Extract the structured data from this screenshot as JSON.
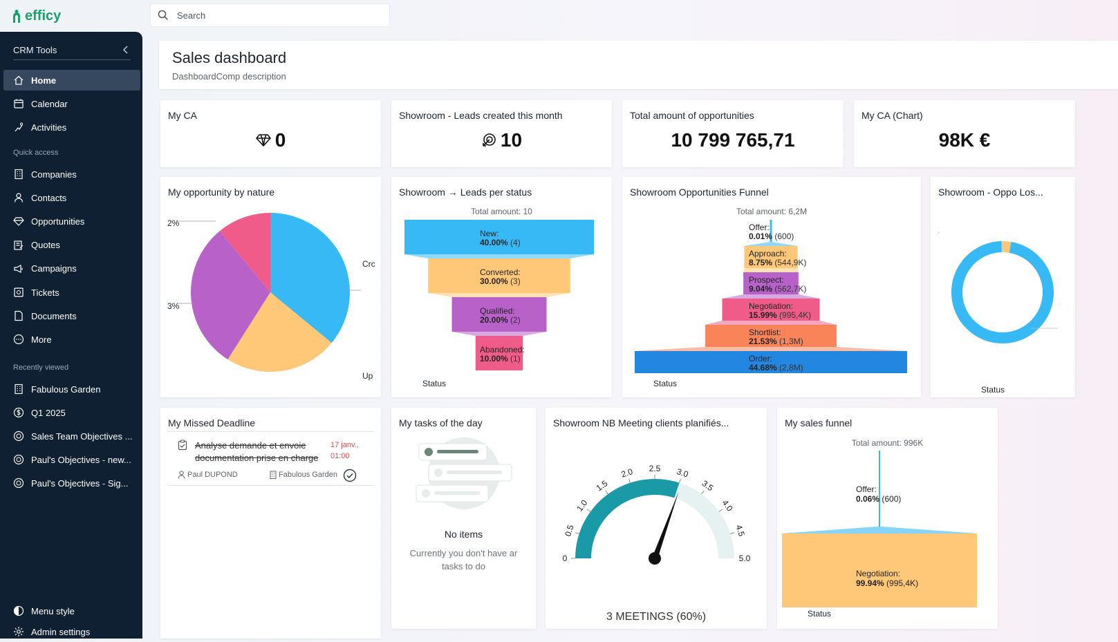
{
  "app": {
    "logo": "efficy"
  },
  "search": {
    "placeholder": "Search"
  },
  "sidebar": {
    "header": "CRM Tools",
    "main": [
      {
        "label": "Home",
        "icon": "home-icon",
        "active": true
      },
      {
        "label": "Calendar",
        "icon": "calendar-icon"
      },
      {
        "label": "Activities",
        "icon": "activities-icon"
      }
    ],
    "quick_access_title": "Quick access",
    "quick": [
      {
        "label": "Companies",
        "icon": "building-icon"
      },
      {
        "label": "Contacts",
        "icon": "user-icon"
      },
      {
        "label": "Opportunities",
        "icon": "diamond-icon"
      },
      {
        "label": "Quotes",
        "icon": "quote-icon"
      },
      {
        "label": "Campaigns",
        "icon": "megaphone-icon"
      },
      {
        "label": "Tickets",
        "icon": "ticket-icon"
      },
      {
        "label": "Documents",
        "icon": "document-icon"
      },
      {
        "label": "More",
        "icon": "more-icon"
      }
    ],
    "recent_title": "Recently viewed",
    "recent": [
      {
        "label": "Fabulous Garden",
        "icon": "building-icon"
      },
      {
        "label": "Q1 2025",
        "icon": "coin-icon"
      },
      {
        "label": "Sales Team Objectives ...",
        "icon": "target-icon"
      },
      {
        "label": "Paul's Objectives - new...",
        "icon": "target-icon"
      },
      {
        "label": "Paul's Objectives - Sig...",
        "icon": "target-icon"
      }
    ],
    "bottom": [
      {
        "label": "Menu style",
        "icon": "contrast-icon"
      },
      {
        "label": "Admin settings",
        "icon": "settings-icon"
      }
    ]
  },
  "dashboard": {
    "title": "Sales dashboard",
    "description": "DashboardComp description"
  },
  "kpis": [
    {
      "title": "My CA",
      "value": "0",
      "icon": "diamond-icon"
    },
    {
      "title": "Showroom - Leads created this month",
      "value": "10",
      "icon": "leads-icon"
    },
    {
      "title": "Total amount of opportunities",
      "value": "10 799 765,71"
    },
    {
      "title": "My CA (Chart)",
      "value": "98K €"
    }
  ],
  "pie_card": {
    "title": "My opportunity by nature",
    "labels_left": [
      "2%",
      "3%"
    ],
    "labels_right": [
      "Crc",
      "Up"
    ]
  },
  "leads_card": {
    "title": "Showroom → Leads per status",
    "total": "Total amount: 10",
    "axis": "Status"
  },
  "oppo_funnel_card": {
    "title": "Showroom Opportunities Funnel",
    "total": "Total amount: 6,2M",
    "axis": "Status"
  },
  "lost_card": {
    "title": "Showroom - Oppo Los...",
    "axis": "Status"
  },
  "missed_card": {
    "title": "My Missed Deadline",
    "task": "Analyse demande et envoie documentation prise en charge",
    "task_line1": "Analyse demande et envoie",
    "task_line2": "documentation prise en charge",
    "date_line1": "17 janv.,",
    "date_line2": "01:00",
    "user": "Paul DUPOND",
    "company": "Fabulous Garden"
  },
  "tasks_card": {
    "title": "My tasks of the day",
    "empty_title": "No items",
    "empty_line1": "Currently you don't have ar",
    "empty_line2": "tasks to do"
  },
  "gauge_card": {
    "title": "Showroom NB Meeting clients planifiés...",
    "readout": "3 MEETINGS (60%)"
  },
  "sales_funnel_card": {
    "title": "My sales funnel",
    "total": "Total amount: 996K",
    "axis": "Status"
  },
  "colors": {
    "blue": "#36b9f5",
    "orange": "#ffc878",
    "purple": "#b862c9",
    "pink": "#ef5c89",
    "salmon": "#f9845a",
    "deepblue": "#2287e0",
    "teal": "#1a9aa6"
  },
  "chart_data": [
    {
      "type": "pie",
      "chart": "My opportunity by nature",
      "labels": [
        "Crc",
        "Up",
        "3%",
        "2%"
      ],
      "values": [
        36,
        23,
        30,
        11
      ],
      "colors": [
        "#36b9f5",
        "#ffc878",
        "#b862c9",
        "#ef5c89"
      ]
    },
    {
      "type": "bar",
      "chart": "Showroom → Leads per status",
      "categories": [
        "New:",
        "Converted:",
        "Qualified:",
        "Abandoned:"
      ],
      "percents": [
        "40.00%",
        "30.00%",
        "20.00%",
        "10.00%"
      ],
      "counts": [
        "(4)",
        "(3)",
        "(2)",
        "(1)"
      ],
      "values": [
        4,
        3,
        2,
        1
      ],
      "colors": [
        "#36b9f5",
        "#ffc878",
        "#b862c9",
        "#ef5c89"
      ]
    },
    {
      "type": "bar",
      "chart": "Showroom Opportunities Funnel",
      "categories": [
        "Offer:",
        "Approach:",
        "Prospect:",
        "Negotiation:",
        "Shortlist:",
        "Order:"
      ],
      "percents": [
        "0.01%",
        "8.75%",
        "9.04%",
        "15.99%",
        "21.53%",
        "44.68%"
      ],
      "amounts": [
        "(600)",
        "(544,9K)",
        "(562,7K)",
        "(995,4K)",
        "(1,3M)",
        "(2,8M)"
      ],
      "values": [
        0.01,
        8.75,
        9.04,
        15.99,
        21.53,
        44.68
      ],
      "colors": [
        "#36b9f5",
        "#ffc878",
        "#b862c9",
        "#ef5c89",
        "#f9845a",
        "#2287e0"
      ]
    },
    {
      "type": "pie",
      "chart": "Showroom - Oppo Los...",
      "values": [
        97,
        3
      ],
      "colors": [
        "#36b9f5",
        "#ffc878"
      ]
    },
    {
      "type": "gauge",
      "chart": "Showroom NB Meeting clients planifiés...",
      "min": 0,
      "max": 5,
      "value": 3,
      "ticks": [
        "0",
        "0.5",
        "1.0",
        "1.5",
        "2.0",
        "2.5",
        "3.0",
        "3.5",
        "4.0",
        "4.5",
        "5.0"
      ]
    },
    {
      "type": "bar",
      "chart": "My sales funnel",
      "categories": [
        "Offer:",
        "Negotiation:"
      ],
      "percents": [
        "0.06%",
        "99.94%"
      ],
      "amounts": [
        "(600)",
        "(995,4K)"
      ],
      "values": [
        0.06,
        99.94
      ],
      "colors": [
        "#36b9f5",
        "#ffc878"
      ]
    }
  ]
}
